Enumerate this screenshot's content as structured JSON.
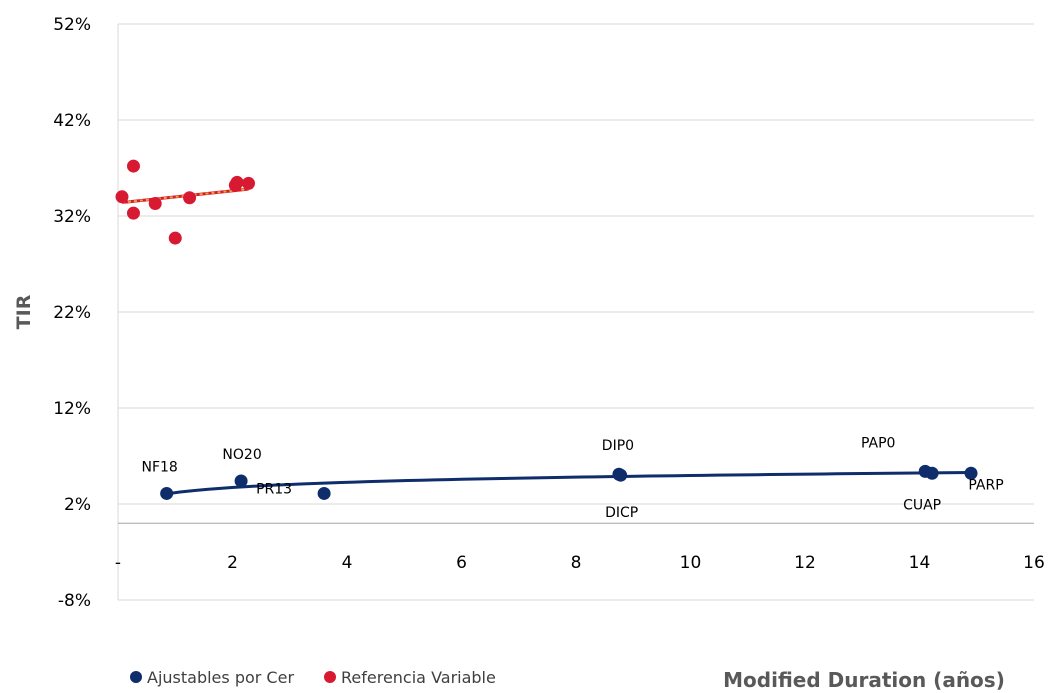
{
  "chart_data": {
    "type": "scatter",
    "xlabel": "Modified Duration (años)",
    "ylabel": "TIR",
    "xlim": [
      0,
      16
    ],
    "ylim": [
      -8,
      52
    ],
    "x_ticks": [
      {
        "value": 0,
        "label": "-"
      },
      {
        "value": 2,
        "label": "2"
      },
      {
        "value": 4,
        "label": "4"
      },
      {
        "value": 6,
        "label": "6"
      },
      {
        "value": 8,
        "label": "8"
      },
      {
        "value": 10,
        "label": "10"
      },
      {
        "value": 12,
        "label": "12"
      },
      {
        "value": 14,
        "label": "14"
      },
      {
        "value": 16,
        "label": "16"
      }
    ],
    "y_ticks": [
      {
        "value": 52,
        "label": "52%"
      },
      {
        "value": 42,
        "label": "42%"
      },
      {
        "value": 32,
        "label": "32%"
      },
      {
        "value": 22,
        "label": "22%"
      },
      {
        "value": 12,
        "label": "12%"
      },
      {
        "value": 2,
        "label": "2%"
      },
      {
        "value": -8,
        "label": "-8%"
      }
    ],
    "grid": "horizontal",
    "legend_position": "bottom-left",
    "series": [
      {
        "name": "Ajustables por Cer",
        "color": "#0f2d6b",
        "points": [
          {
            "x": 0.85,
            "y": 3.1,
            "label": "NF18"
          },
          {
            "x": 2.15,
            "y": 4.4,
            "label": "NO20"
          },
          {
            "x": 3.6,
            "y": 3.1,
            "label": "PR13"
          },
          {
            "x": 8.75,
            "y": 5.1,
            "label": "DIP0"
          },
          {
            "x": 8.78,
            "y": 5.0,
            "label": "DICP"
          },
          {
            "x": 14.1,
            "y": 5.4,
            "label": "PAP0"
          },
          {
            "x": 14.22,
            "y": 5.2,
            "label": "CUAP"
          },
          {
            "x": 14.9,
            "y": 5.2,
            "label": "PARP"
          }
        ],
        "trendline": {
          "type": "logarithmic",
          "x_range": [
            0.85,
            14.9
          ],
          "color": "#0f2d6b"
        }
      },
      {
        "name": "Referencia Variable",
        "color": "#d71a32",
        "points": [
          {
            "x": 0.07,
            "y": 34.0
          },
          {
            "x": 0.27,
            "y": 37.2
          },
          {
            "x": 0.27,
            "y": 32.3
          },
          {
            "x": 0.65,
            "y": 33.3
          },
          {
            "x": 1.0,
            "y": 29.7
          },
          {
            "x": 1.25,
            "y": 33.9
          },
          {
            "x": 2.05,
            "y": 35.2
          },
          {
            "x": 2.08,
            "y": 35.5
          },
          {
            "x": 2.28,
            "y": 35.4
          }
        ],
        "trendline": {
          "type": "linear",
          "x_range": [
            0.07,
            2.28
          ],
          "color": "#e8a33a",
          "secondary_color": "#d71a32"
        }
      }
    ]
  }
}
